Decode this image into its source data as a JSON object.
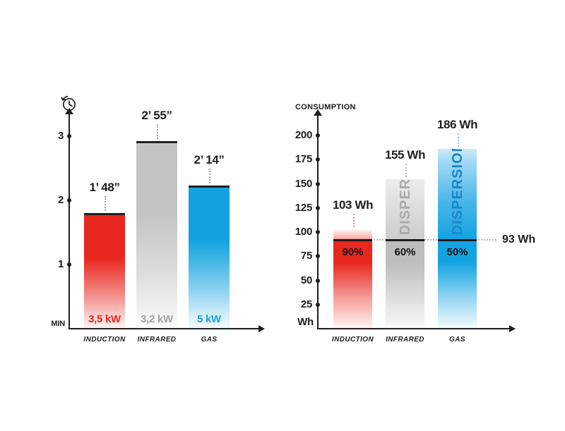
{
  "colors": {
    "induction_red": "#e8271e",
    "infrared_gray": "#c4c4c4",
    "gas_blue": "#14a3e1",
    "ink": "#1d1d1b",
    "dispersion_gray_text": "#ababab",
    "dispersion_blue_text": "#1787c8"
  },
  "icons": {
    "left_chart": "clock-history"
  },
  "chart_data": [
    {
      "type": "bar",
      "categories": [
        "INDUCTION",
        "INFRARED",
        "GAS"
      ],
      "values": [
        1.8,
        2.92,
        2.23
      ],
      "value_labels": [
        "1’ 48”",
        "2’ 55”",
        "2’ 14”"
      ],
      "power_labels": [
        "3,5 kW",
        "3,2 kW",
        "5 kW"
      ],
      "title": "",
      "xlabel": "",
      "ylabel": "MIN",
      "yticks": [
        1,
        2,
        3
      ],
      "ylim": [
        0,
        3.3
      ],
      "grid": false,
      "legend": false,
      "bar_colors": [
        "#e8271e",
        "#c4c4c4",
        "#14a3e1"
      ]
    },
    {
      "type": "bar",
      "categories": [
        "INDUCTION",
        "INFRARED",
        "GAS"
      ],
      "values": [
        103,
        155,
        186
      ],
      "value_labels": [
        "103 Wh",
        "155 Wh",
        "186 Wh"
      ],
      "efficiency_labels": [
        "90%",
        "60%",
        "50%"
      ],
      "dispersion_labels": [
        "",
        "DISPERSI",
        "DISPERSION"
      ],
      "reference_line": {
        "value": 93,
        "label": "93 Wh"
      },
      "title": "CONSUMPTION",
      "xlabel": "",
      "ylabel": "Wh",
      "yticks": [
        25,
        50,
        75,
        100,
        125,
        150,
        175,
        200
      ],
      "ylim": [
        0,
        215
      ],
      "grid": false,
      "legend": false,
      "bar_colors": [
        "#e8271e",
        "#c4c4c4",
        "#14a3e1"
      ]
    }
  ]
}
